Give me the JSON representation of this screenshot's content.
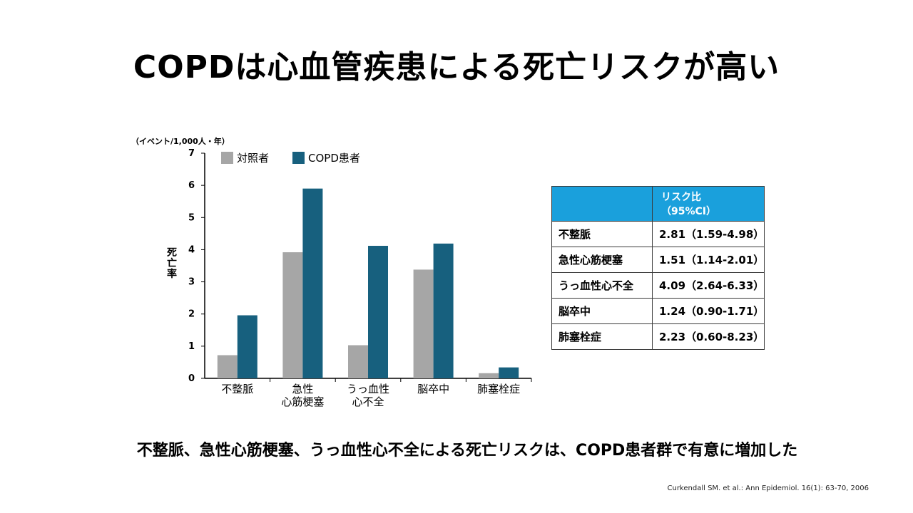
{
  "title": "COPDは心血管疾患による死亡リスクが高い",
  "chart_data": {
    "type": "bar",
    "unit": "（イベント/1,000人・年）",
    "ylabel": "死亡率",
    "ylim": [
      0,
      7
    ],
    "yticks": [
      "0",
      "1",
      "2",
      "3",
      "4",
      "5",
      "6",
      "7"
    ],
    "categories": [
      "不整脈",
      "急性\n心筋梗塞",
      "うっ血性\n心不全",
      "脳卒中",
      "肺塞栓症"
    ],
    "series": [
      {
        "name": "対照者",
        "color": "#a6a6a6",
        "values": [
          0.72,
          3.92,
          1.03,
          3.38,
          0.16
        ]
      },
      {
        "name": "COPD患者",
        "color": "#17607e",
        "values": [
          1.96,
          5.9,
          4.12,
          4.19,
          0.34
        ]
      }
    ],
    "legend_position": "top-left",
    "grid": false
  },
  "risk_table": {
    "header": "リスク比\n（95%CI）",
    "header_color": "#1aa0dc",
    "rows": [
      {
        "label": "不整脈",
        "value": "2.81（1.59-4.98）"
      },
      {
        "label": "急性心筋梗塞",
        "value": "1.51（1.14-2.01）"
      },
      {
        "label": "うっ血性心不全",
        "value": "4.09（2.64-6.33）"
      },
      {
        "label": "脳卒中",
        "value": "1.24（0.90-1.71）"
      },
      {
        "label": "肺塞栓症",
        "value": "2.23（0.60-8.23）"
      }
    ]
  },
  "conclusion": "不整脈、急性心筋梗塞、うっ血性心不全による死亡リスクは、COPD患者群で有意に増加した",
  "citation": "Curkendall SM. et al.: Ann Epidemiol. 16(1): 63-70, 2006"
}
